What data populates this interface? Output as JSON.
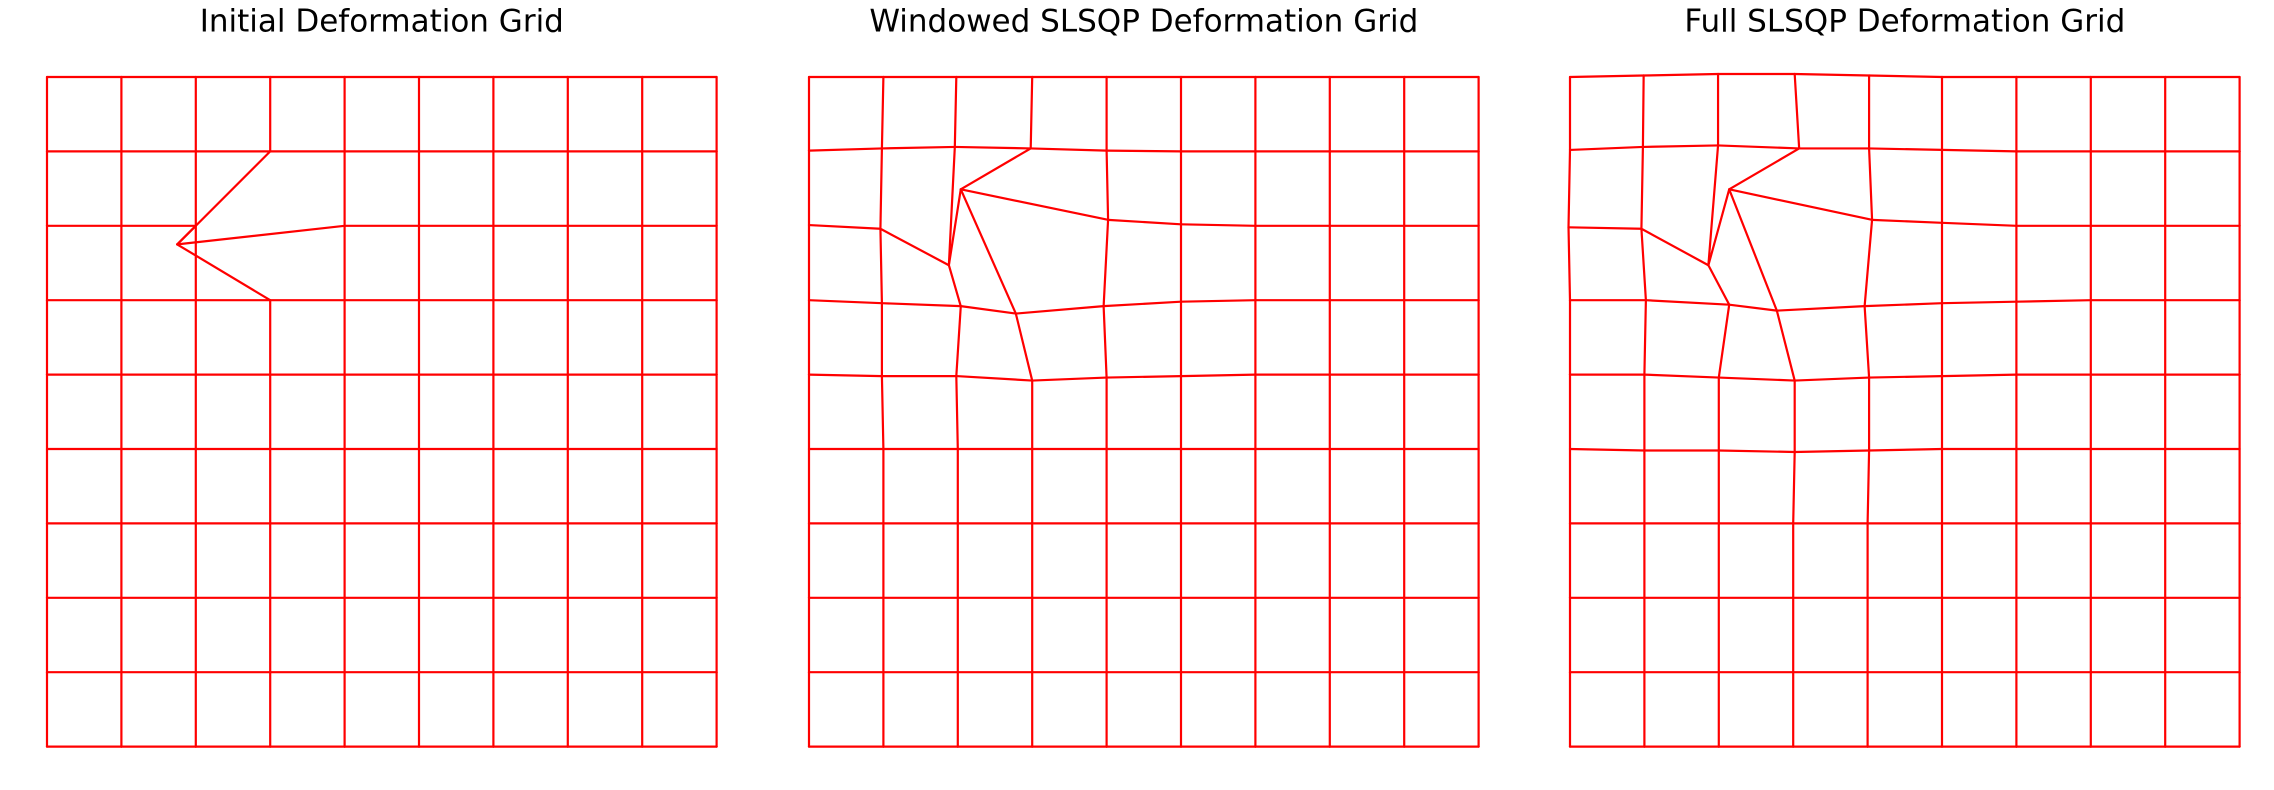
{
  "chart_data": [
    {
      "type": "grid",
      "title": "Initial Deformation Grid",
      "color": "#ff0000",
      "points": [
        [
          [
            0,
            0
          ],
          [
            1,
            0
          ],
          [
            2,
            0
          ],
          [
            3,
            0
          ],
          [
            4,
            0
          ],
          [
            5,
            0
          ],
          [
            6,
            0
          ],
          [
            7,
            0
          ],
          [
            8,
            0
          ],
          [
            9,
            0
          ]
        ],
        [
          [
            0,
            1
          ],
          [
            1,
            1
          ],
          [
            2,
            1
          ],
          [
            3,
            1
          ],
          [
            4,
            1
          ],
          [
            5,
            1
          ],
          [
            6,
            1
          ],
          [
            7,
            1
          ],
          [
            8,
            1
          ],
          [
            9,
            1
          ]
        ],
        [
          [
            0,
            2
          ],
          [
            1,
            2
          ],
          [
            2,
            2
          ],
          [
            1.75,
            2.25
          ],
          [
            4,
            2
          ],
          [
            5,
            2
          ],
          [
            6,
            2
          ],
          [
            7,
            2
          ],
          [
            8,
            2
          ],
          [
            9,
            2
          ]
        ],
        [
          [
            0,
            3
          ],
          [
            1,
            3
          ],
          [
            2,
            3
          ],
          [
            3,
            3
          ],
          [
            4,
            3
          ],
          [
            5,
            3
          ],
          [
            6,
            3
          ],
          [
            7,
            3
          ],
          [
            8,
            3
          ],
          [
            9,
            3
          ]
        ],
        [
          [
            0,
            4
          ],
          [
            1,
            4
          ],
          [
            2,
            4
          ],
          [
            3,
            4
          ],
          [
            4,
            4
          ],
          [
            5,
            4
          ],
          [
            6,
            4
          ],
          [
            7,
            4
          ],
          [
            8,
            4
          ],
          [
            9,
            4
          ]
        ],
        [
          [
            0,
            5
          ],
          [
            1,
            5
          ],
          [
            2,
            5
          ],
          [
            3,
            5
          ],
          [
            4,
            5
          ],
          [
            5,
            5
          ],
          [
            6,
            5
          ],
          [
            7,
            5
          ],
          [
            8,
            5
          ],
          [
            9,
            5
          ]
        ],
        [
          [
            0,
            6
          ],
          [
            1,
            6
          ],
          [
            2,
            6
          ],
          [
            3,
            6
          ],
          [
            4,
            6
          ],
          [
            5,
            6
          ],
          [
            6,
            6
          ],
          [
            7,
            6
          ],
          [
            8,
            6
          ],
          [
            9,
            6
          ]
        ],
        [
          [
            0,
            7
          ],
          [
            1,
            7
          ],
          [
            2,
            7
          ],
          [
            3,
            7
          ],
          [
            4,
            7
          ],
          [
            5,
            7
          ],
          [
            6,
            7
          ],
          [
            7,
            7
          ],
          [
            8,
            7
          ],
          [
            9,
            7
          ]
        ],
        [
          [
            0,
            8
          ],
          [
            1,
            8
          ],
          [
            2,
            8
          ],
          [
            3,
            8
          ],
          [
            4,
            8
          ],
          [
            5,
            8
          ],
          [
            6,
            8
          ],
          [
            7,
            8
          ],
          [
            8,
            8
          ],
          [
            9,
            8
          ]
        ],
        [
          [
            0,
            9
          ],
          [
            1,
            9
          ],
          [
            2,
            9
          ],
          [
            3,
            9
          ],
          [
            4,
            9
          ],
          [
            5,
            9
          ],
          [
            6,
            9
          ],
          [
            7,
            9
          ],
          [
            8,
            9
          ],
          [
            9,
            9
          ]
        ]
      ]
    },
    {
      "type": "grid",
      "title": "Windowed SLSQP Deformation Grid",
      "color": "#ff0000",
      "points": [
        [
          [
            0,
            0
          ],
          [
            1,
            0
          ],
          [
            1.98,
            0
          ],
          [
            3,
            0
          ],
          [
            4,
            0
          ],
          [
            5,
            0
          ],
          [
            6,
            0
          ],
          [
            7,
            0
          ],
          [
            8,
            0
          ],
          [
            9,
            0
          ]
        ],
        [
          [
            0,
            0.99
          ],
          [
            0.98,
            0.96
          ],
          [
            1.96,
            0.94
          ],
          [
            2.98,
            0.96
          ],
          [
            4,
            0.99
          ],
          [
            5,
            1
          ],
          [
            6,
            1
          ],
          [
            7,
            1
          ],
          [
            8,
            1
          ],
          [
            9,
            1
          ]
        ],
        [
          [
            0,
            1.99
          ],
          [
            0.96,
            2.04
          ],
          [
            1.88,
            2.53
          ],
          [
            2.04,
            1.51
          ],
          [
            4.02,
            1.92
          ],
          [
            5,
            1.98
          ],
          [
            6,
            2
          ],
          [
            7,
            2
          ],
          [
            8,
            2
          ],
          [
            9,
            2
          ]
        ],
        [
          [
            0,
            3
          ],
          [
            0.98,
            3.04
          ],
          [
            2.04,
            3.08
          ],
          [
            2.78,
            3.18
          ],
          [
            3.96,
            3.08
          ],
          [
            5,
            3.02
          ],
          [
            6,
            3
          ],
          [
            7,
            3
          ],
          [
            8,
            3
          ],
          [
            9,
            3
          ]
        ],
        [
          [
            0,
            4
          ],
          [
            0.98,
            4.02
          ],
          [
            1.98,
            4.02
          ],
          [
            3,
            4.08
          ],
          [
            4,
            4.04
          ],
          [
            5,
            4.02
          ],
          [
            6,
            4
          ],
          [
            7,
            4
          ],
          [
            8,
            4
          ],
          [
            9,
            4
          ]
        ],
        [
          [
            0,
            5
          ],
          [
            1,
            5
          ],
          [
            2,
            5
          ],
          [
            3,
            5
          ],
          [
            4,
            5
          ],
          [
            5,
            5
          ],
          [
            6,
            5
          ],
          [
            7,
            5
          ],
          [
            8,
            5
          ],
          [
            9,
            5
          ]
        ],
        [
          [
            0,
            6
          ],
          [
            1,
            6
          ],
          [
            2,
            6
          ],
          [
            3,
            6
          ],
          [
            4,
            6
          ],
          [
            5,
            6
          ],
          [
            6,
            6
          ],
          [
            7,
            6
          ],
          [
            8,
            6
          ],
          [
            9,
            6
          ]
        ],
        [
          [
            0,
            7
          ],
          [
            1,
            7
          ],
          [
            2,
            7
          ],
          [
            3,
            7
          ],
          [
            4,
            7
          ],
          [
            5,
            7
          ],
          [
            6,
            7
          ],
          [
            7,
            7
          ],
          [
            8,
            7
          ],
          [
            9,
            7
          ]
        ],
        [
          [
            0,
            8
          ],
          [
            1,
            8
          ],
          [
            2,
            8
          ],
          [
            3,
            8
          ],
          [
            4,
            8
          ],
          [
            5,
            8
          ],
          [
            6,
            8
          ],
          [
            7,
            8
          ],
          [
            8,
            8
          ],
          [
            9,
            8
          ]
        ],
        [
          [
            0,
            9
          ],
          [
            1,
            9
          ],
          [
            2,
            9
          ],
          [
            3,
            9
          ],
          [
            4,
            9
          ],
          [
            5,
            9
          ],
          [
            6,
            9
          ],
          [
            7,
            9
          ],
          [
            8,
            9
          ],
          [
            9,
            9
          ]
        ]
      ]
    },
    {
      "type": "grid",
      "title": "Full SLSQP Deformation Grid",
      "color": "#ff0000",
      "points": [
        [
          [
            0,
            0
          ],
          [
            0.99,
            -0.02
          ],
          [
            1.99,
            -0.04
          ],
          [
            3.02,
            -0.04
          ],
          [
            4.02,
            -0.02
          ],
          [
            5,
            0
          ],
          [
            6,
            0
          ],
          [
            7,
            0
          ],
          [
            8,
            0
          ],
          [
            9,
            0
          ]
        ],
        [
          [
            0,
            0.98
          ],
          [
            0.98,
            0.94
          ],
          [
            1.99,
            0.92
          ],
          [
            3.08,
            0.96
          ],
          [
            4.02,
            0.96
          ],
          [
            5,
            0.98
          ],
          [
            6,
            1
          ],
          [
            7,
            1
          ],
          [
            8,
            1
          ],
          [
            9,
            1
          ]
        ],
        [
          [
            -0.02,
            2.02
          ],
          [
            0.96,
            2.04
          ],
          [
            1.86,
            2.53
          ],
          [
            2.14,
            1.51
          ],
          [
            4.06,
            1.92
          ],
          [
            5,
            1.96
          ],
          [
            6,
            2
          ],
          [
            7,
            2
          ],
          [
            8,
            2
          ],
          [
            9,
            2
          ]
        ],
        [
          [
            0,
            3
          ],
          [
            1.02,
            3
          ],
          [
            2.14,
            3.06
          ],
          [
            2.78,
            3.14
          ],
          [
            3.96,
            3.08
          ],
          [
            5,
            3.04
          ],
          [
            6,
            3.02
          ],
          [
            7,
            3
          ],
          [
            8,
            3
          ],
          [
            9,
            3
          ]
        ],
        [
          [
            0,
            4
          ],
          [
            1,
            4
          ],
          [
            2,
            4.04
          ],
          [
            3.02,
            4.08
          ],
          [
            4.02,
            4.04
          ],
          [
            5,
            4.02
          ],
          [
            6,
            4
          ],
          [
            7,
            4
          ],
          [
            8,
            4
          ],
          [
            9,
            4
          ]
        ],
        [
          [
            0,
            5
          ],
          [
            1,
            5.02
          ],
          [
            2,
            5.02
          ],
          [
            3.02,
            5.04
          ],
          [
            4.02,
            5.02
          ],
          [
            5,
            5
          ],
          [
            6,
            5
          ],
          [
            7,
            5
          ],
          [
            8,
            5
          ],
          [
            9,
            5
          ]
        ],
        [
          [
            0,
            6
          ],
          [
            1,
            6
          ],
          [
            2,
            6
          ],
          [
            3,
            6
          ],
          [
            4,
            6
          ],
          [
            5,
            6
          ],
          [
            6,
            6
          ],
          [
            7,
            6
          ],
          [
            8,
            6
          ],
          [
            9,
            6
          ]
        ],
        [
          [
            0,
            7
          ],
          [
            1,
            7
          ],
          [
            2,
            7
          ],
          [
            3,
            7
          ],
          [
            4,
            7
          ],
          [
            5,
            7
          ],
          [
            6,
            7
          ],
          [
            7,
            7
          ],
          [
            8,
            7
          ],
          [
            9,
            7
          ]
        ],
        [
          [
            0,
            8
          ],
          [
            1,
            8
          ],
          [
            2,
            8
          ],
          [
            3,
            8
          ],
          [
            4,
            8
          ],
          [
            5,
            8
          ],
          [
            6,
            8
          ],
          [
            7,
            8
          ],
          [
            8,
            8
          ],
          [
            9,
            8
          ]
        ],
        [
          [
            0,
            9
          ],
          [
            1,
            9
          ],
          [
            2,
            9
          ],
          [
            3,
            9
          ],
          [
            4,
            9
          ],
          [
            5,
            9
          ],
          [
            6,
            9
          ],
          [
            7,
            9
          ],
          [
            8,
            9
          ],
          [
            9,
            9
          ]
        ]
      ]
    }
  ]
}
